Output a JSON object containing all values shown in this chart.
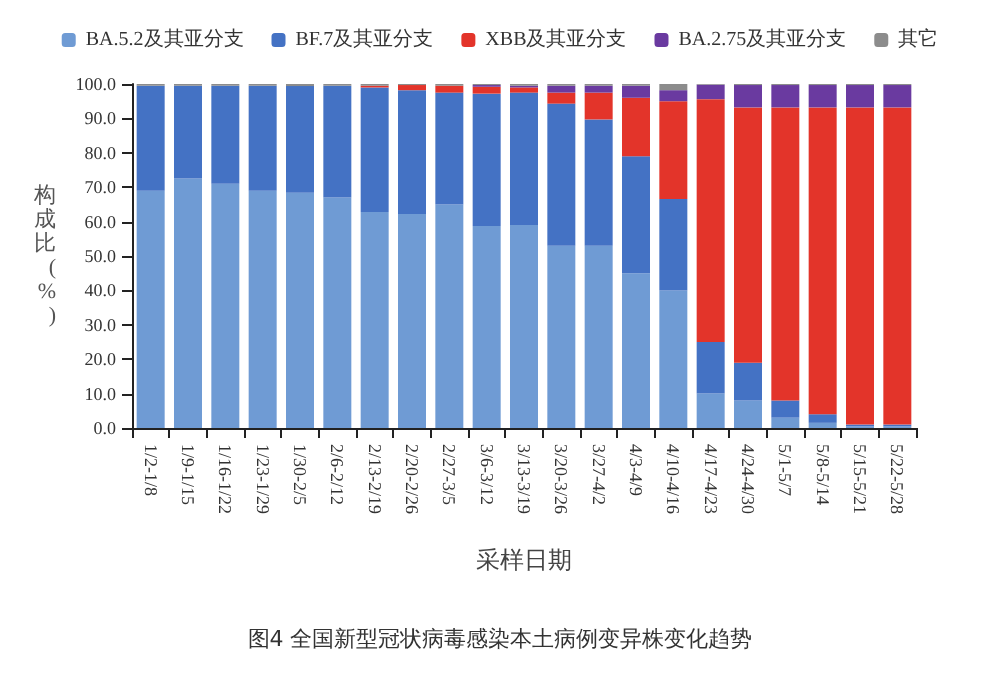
{
  "chart_data": {
    "type": "bar",
    "stacked": true,
    "title": "图4 全国新型冠状病毒感染本土病例变异株变化趋势",
    "xlabel": "采样日期",
    "ylabel": "构成比(%)",
    "categories": [
      "1/2-1/8",
      "1/9-1/15",
      "1/16-1/22",
      "1/23-1/29",
      "1/30-2/5",
      "2/6-2/12",
      "2/13-2/19",
      "2/20-2/26",
      "2/27-3/5",
      "3/6-3/12",
      "3/13-3/19",
      "3/20-3/26",
      "3/27-4/2",
      "4/3-4/9",
      "4/10-4/16",
      "4/17-4/23",
      "4/24-4/30",
      "5/1-5/7",
      "5/8-5/14",
      "5/15-5/21",
      "5/22-5/28"
    ],
    "series": [
      {
        "name": "BA.5.2及其亚分支",
        "color": "#6f9bd4",
        "values": [
          69,
          72.5,
          71,
          69,
          68.4,
          67,
          62.8,
          62.2,
          65,
          58.7,
          59,
          53,
          53,
          45,
          40,
          10,
          8,
          3,
          1.5,
          0.5,
          0.5
        ]
      },
      {
        "name": "BF.7及其亚分支",
        "color": "#4472c4",
        "values": [
          30.5,
          27,
          28.5,
          30.5,
          31,
          32.5,
          36.2,
          36,
          32.5,
          38.5,
          38.5,
          41.3,
          36.7,
          34,
          26.6,
          15,
          11,
          5,
          2.5,
          0.5,
          0.5
        ]
      },
      {
        "name": "XBB及其亚分支",
        "color": "#e3342a",
        "values": [
          0,
          0,
          0,
          0,
          0,
          0,
          0.5,
          1.5,
          2,
          2,
          1.5,
          3.2,
          7.8,
          17,
          28.4,
          70.6,
          74.2,
          85.2,
          89.2,
          92.2,
          92.2
        ]
      },
      {
        "name": "BA.2.75及其亚分支",
        "color": "#6a3aa0",
        "values": [
          0,
          0,
          0,
          0,
          0,
          0,
          0,
          0,
          0,
          0.5,
          0.5,
          2,
          2,
          3.5,
          3.2,
          4.2,
          6.5,
          6.5,
          6.5,
          6.5,
          6.5
        ]
      },
      {
        "name": "其它",
        "color": "#8c8c8c",
        "values": [
          0.5,
          0.5,
          0.5,
          0.5,
          0.6,
          0.5,
          0.5,
          0.3,
          0.5,
          0.3,
          0.5,
          0.5,
          0.5,
          0.5,
          1.8,
          0.2,
          0.3,
          0.3,
          0.3,
          0.3,
          0.3
        ]
      }
    ],
    "ylim": [
      0,
      100
    ],
    "yticks": [
      {
        "value": 0,
        "label": "0.0"
      },
      {
        "value": 10,
        "label": "10.0"
      },
      {
        "value": 20,
        "label": "20.0"
      },
      {
        "value": 30,
        "label": "30.0"
      },
      {
        "value": 40,
        "label": "40.0"
      },
      {
        "value": 50,
        "label": "50.0"
      },
      {
        "value": 60,
        "label": "60.0"
      },
      {
        "value": 70,
        "label": "70.0"
      },
      {
        "value": 80,
        "label": "80.0"
      },
      {
        "value": 90,
        "label": "90.0"
      },
      {
        "value": 100,
        "label": "100.0"
      }
    ],
    "grid": false,
    "legend": "top"
  }
}
